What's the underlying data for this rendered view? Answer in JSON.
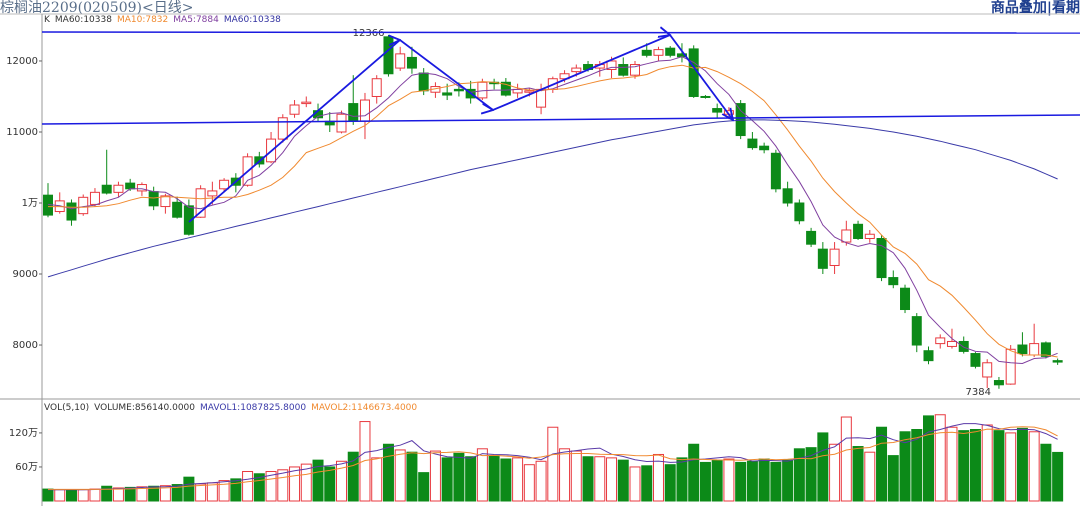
{
  "header": {
    "title": "棕榈油2209(020509)<日线>",
    "right_text": "商品叠加|看期"
  },
  "chart_data": [
    {
      "type": "candlestick",
      "legend": [
        {
          "text": "K",
          "color": "#333333"
        },
        {
          "text": "MA60:10338",
          "color": "#333333"
        },
        {
          "text": "MA10:7832",
          "color": "#f08a30"
        },
        {
          "text": "MA5:7884",
          "color": "#8040a0"
        },
        {
          "text": "MA60:10338",
          "color": "#3030a0"
        }
      ],
      "open": [
        10110,
        9880,
        10000,
        9850,
        9980,
        10250,
        10150,
        10280,
        10170,
        10160,
        9950,
        10010,
        9960,
        9800,
        10100,
        10200,
        10350,
        10250,
        10650,
        10580,
        10900,
        11250,
        11400,
        11300,
        11150,
        11000,
        11400,
        11150,
        11500,
        12340,
        11900,
        12050,
        11830,
        11560,
        11550,
        11600,
        11600,
        11480,
        11700,
        11700,
        11550,
        11560,
        11350,
        11600,
        11750,
        11850,
        11950,
        11900,
        11880,
        11950,
        11800,
        12150,
        12080,
        12180,
        12100,
        12170,
        11500,
        11330,
        11250,
        11400,
        10900,
        10800,
        10700,
        10200,
        10000,
        9600,
        9350,
        9120,
        9450,
        9700,
        9500,
        9500,
        8950,
        8800,
        8400,
        7920,
        8020,
        7980,
        8050,
        7880,
        7550,
        7500,
        7450,
        8000,
        7860,
        8030,
        7780
      ],
      "high": [
        10280,
        10150,
        10050,
        10120,
        10210,
        10750,
        10300,
        10340,
        10290,
        10230,
        10130,
        10090,
        10050,
        10250,
        10300,
        10350,
        10420,
        10700,
        10720,
        11000,
        11250,
        11450,
        11500,
        11400,
        11280,
        11300,
        11800,
        11550,
        11800,
        12366,
        12200,
        12200,
        11900,
        11700,
        11680,
        11700,
        11720,
        11750,
        11750,
        11760,
        11680,
        11620,
        11680,
        11780,
        11870,
        11950,
        12000,
        12000,
        12060,
        12050,
        12000,
        12250,
        12200,
        12210,
        12250,
        12220,
        11520,
        11400,
        11350,
        11450,
        11000,
        10850,
        10750,
        10300,
        10050,
        9650,
        9450,
        9450,
        9750,
        9750,
        9620,
        9550,
        9050,
        8850,
        8450,
        7980,
        8150,
        8230,
        8120,
        7900,
        7800,
        7550,
        8000,
        8180,
        8300,
        8050,
        7810
      ],
      "low": [
        9800,
        9850,
        9680,
        9820,
        9950,
        10120,
        10080,
        10170,
        10100,
        9900,
        9850,
        9780,
        9540,
        9790,
        9980,
        10150,
        10150,
        10230,
        10500,
        10560,
        10850,
        11200,
        11350,
        11150,
        11000,
        10980,
        11100,
        10900,
        11400,
        11780,
        11860,
        11820,
        11520,
        11480,
        11450,
        11500,
        11400,
        11450,
        11600,
        11500,
        11480,
        11500,
        11250,
        11550,
        11700,
        11780,
        11850,
        11780,
        11760,
        11780,
        11750,
        12050,
        12000,
        12050,
        11980,
        11480,
        11470,
        11200,
        11180,
        10900,
        10750,
        10700,
        10150,
        9950,
        9700,
        9380,
        9000,
        9000,
        9400,
        9480,
        9440,
        8900,
        8800,
        8450,
        7900,
        7730,
        7950,
        7950,
        7880,
        7670,
        7394,
        7384,
        7440,
        7840,
        7830,
        7810,
        7720
      ],
      "close": [
        9830,
        10030,
        9760,
        10080,
        10150,
        10140,
        10250,
        10200,
        10260,
        9960,
        10100,
        9800,
        9560,
        10200,
        10170,
        10320,
        10250,
        10650,
        10550,
        10900,
        11200,
        11380,
        11420,
        11200,
        11100,
        11250,
        11150,
        11450,
        11750,
        11820,
        12100,
        11900,
        11580,
        11640,
        11520,
        11580,
        11480,
        11700,
        11680,
        11520,
        11600,
        11580,
        11600,
        11750,
        11820,
        11900,
        11880,
        11950,
        12000,
        11800,
        11950,
        12080,
        12160,
        12080,
        12060,
        11500,
        11490,
        11280,
        11300,
        10950,
        10780,
        10750,
        10200,
        10000,
        9750,
        9420,
        9080,
        9350,
        9620,
        9500,
        9560,
        8950,
        8850,
        8500,
        8000,
        7780,
        8100,
        8050,
        7910,
        7700,
        7750,
        7440,
        7940,
        7880,
        8020,
        7840,
        7760
      ],
      "up_color": "#e8393f",
      "down_color": "#0c8a18",
      "series": [
        {
          "color": "#8040a0",
          "values": [
            9980,
            9960,
            9920,
            9950,
            9970,
            10030,
            10080,
            10200,
            10200,
            10160,
            10150,
            10060,
            9940,
            9920,
            9970,
            10010,
            10100,
            10320,
            10390,
            10530,
            10710,
            10940,
            11090,
            11220,
            11260,
            11270,
            11220,
            11230,
            11340,
            11480,
            11650,
            11800,
            11830,
            11810,
            11750,
            11640,
            11560,
            11580,
            11590,
            11590,
            11600,
            11620,
            11580,
            11610,
            11670,
            11730,
            11790,
            11860,
            11910,
            11910,
            11920,
            11960,
            12000,
            12010,
            12060,
            11980,
            11860,
            11680,
            11530,
            11300,
            11160,
            11010,
            10800,
            10540,
            10300,
            10020,
            9690,
            9520,
            9440,
            9390,
            9430,
            9400,
            9300,
            9080,
            8770,
            8420,
            8250,
            8090,
            7970,
            7910,
            7900,
            7770,
            7750,
            7740,
            7810,
            7820,
            7884
          ]
        },
        {
          "color": "#f08a30",
          "values": [
            9950,
            9950,
            9940,
            9940,
            9950,
            9960,
            9990,
            10040,
            10080,
            10070,
            10090,
            10080,
            10070,
            10060,
            10070,
            10080,
            10080,
            10120,
            10180,
            10250,
            10360,
            10520,
            10710,
            10770,
            10830,
            10920,
            11010,
            11090,
            11220,
            11370,
            11460,
            11560,
            11580,
            11610,
            11640,
            11680,
            11690,
            11710,
            11700,
            11670,
            11620,
            11590,
            11590,
            11600,
            11610,
            11640,
            11680,
            11720,
            11750,
            11760,
            11780,
            11810,
            11880,
            11920,
            11940,
            11900,
            11910,
            11850,
            11770,
            11680,
            11570,
            11440,
            11240,
            11030,
            10800,
            10590,
            10350,
            10160,
            10000,
            9850,
            9730,
            9550,
            9380,
            9290,
            9140,
            8920,
            8830,
            8700,
            8530,
            8350,
            8160,
            8010,
            7920,
            7860,
            7860,
            7860,
            7832
          ]
        },
        {
          "color": "#3a3aa8",
          "values": [
            8960,
            9010,
            9060,
            9110,
            9160,
            9210,
            9255,
            9300,
            9345,
            9390,
            9430,
            9470,
            9510,
            9550,
            9590,
            9630,
            9670,
            9710,
            9750,
            9790,
            9830,
            9870,
            9910,
            9950,
            9990,
            10030,
            10070,
            10110,
            10150,
            10190,
            10230,
            10270,
            10310,
            10350,
            10390,
            10430,
            10470,
            10505,
            10540,
            10575,
            10610,
            10645,
            10680,
            10715,
            10750,
            10785,
            10820,
            10855,
            10890,
            10920,
            10950,
            10980,
            11010,
            11040,
            11070,
            11100,
            11120,
            11140,
            11155,
            11165,
            11170,
            11170,
            11165,
            11160,
            11150,
            11140,
            11125,
            11110,
            11090,
            11070,
            11050,
            11025,
            11000,
            10970,
            10940,
            10905,
            10870,
            10830,
            10790,
            10750,
            10700,
            10650,
            10600,
            10540,
            10480,
            10410,
            10338
          ]
        }
      ],
      "ylim": [
        7254,
        12577
      ],
      "yticks": [
        8000,
        9000,
        {
          "value": 10000,
          "label": "1万"
        },
        11000,
        12000
      ],
      "high_label": "12366",
      "low_label": "7384"
    },
    {
      "type": "volume",
      "legend": [
        {
          "text": "VOL(5,10)",
          "color": "#333333"
        },
        {
          "text": "VOLUME:856140.0000",
          "color": "#333333"
        },
        {
          "text": "MAVOL1:1087825.8000",
          "color": "#3a3aa8"
        },
        {
          "text": "MAVOL2:1146673.4000",
          "color": "#f08a30"
        }
      ],
      "values": [
        210000,
        200000,
        190000,
        200000,
        210000,
        260000,
        230000,
        240000,
        250000,
        260000,
        270000,
        290000,
        420000,
        300000,
        320000,
        360000,
        390000,
        520000,
        480000,
        520000,
        550000,
        600000,
        650000,
        720000,
        600000,
        700000,
        860000,
        1400000,
        760000,
        1000000,
        900000,
        860000,
        500000,
        880000,
        760000,
        840000,
        780000,
        920000,
        800000,
        740000,
        760000,
        640000,
        700000,
        1300000,
        920000,
        880000,
        780000,
        780000,
        760000,
        720000,
        600000,
        620000,
        820000,
        640000,
        760000,
        1000000,
        680000,
        720000,
        740000,
        680000,
        700000,
        740000,
        680000,
        720000,
        920000,
        940000,
        1200000,
        1000000,
        1480000,
        960000,
        860000,
        1300000,
        800000,
        1220000,
        1260000,
        1500000,
        1520000,
        1300000,
        1240000,
        1260000,
        1340000,
        1240000,
        1200000,
        1280000,
        1220000,
        1000000,
        856140
      ],
      "series": [
        {
          "color": "#5a3aa8",
          "values": [
            200000,
            200000,
            200000,
            200000,
            202000,
            212000,
            218000,
            226000,
            238000,
            248000,
            250000,
            262000,
            298000,
            308000,
            320000,
            338000,
            358000,
            382000,
            414000,
            454000,
            492000,
            534000,
            564000,
            608000,
            624000,
            654000,
            706000,
            856000,
            888000,
            944000,
            984000,
            1064000,
            884000,
            828000,
            780000,
            768000,
            752000,
            836000,
            820000,
            816000,
            800000,
            772000,
            728000,
            828000,
            864000,
            888000,
            916000,
            932000,
            824000,
            784000,
            728000,
            696000,
            704000,
            680000,
            688000,
            728000,
            740000,
            760000,
            780000,
            764000,
            704000,
            716000,
            712000,
            704000,
            752000,
            800000,
            892000,
            956000,
            1108000,
            1116000,
            1100000,
            1160000,
            1080000,
            1028000,
            1088000,
            1216000,
            1260000,
            1320000,
            1364000,
            1364000,
            1332000,
            1276000,
            1256000,
            1264000,
            1256000,
            1188000,
            1087825.8
          ]
        },
        {
          "color": "#f08a30",
          "values": [
            205000,
            205000,
            205000,
            205000,
            205000,
            207000,
            209000,
            213000,
            220000,
            225000,
            231000,
            240000,
            262000,
            273000,
            284000,
            294000,
            310000,
            338000,
            361000,
            387000,
            415000,
            446000,
            469000,
            511000,
            539000,
            579000,
            626000,
            714000,
            742000,
            790000,
            825000,
            851000,
            836000,
            852000,
            856000,
            868000,
            848000,
            800000,
            804000,
            792000,
            777000,
            755000,
            775000,
            817000,
            833000,
            837000,
            837000,
            823000,
            819000,
            817000,
            801000,
            799000,
            811000,
            745000,
            729000,
            741000,
            731000,
            725000,
            723000,
            719000,
            729000,
            741000,
            727000,
            735000,
            751000,
            745000,
            797000,
            825000,
            899000,
            927000,
            943000,
            1019000,
            1031000,
            1081000,
            1115000,
            1171000,
            1203000,
            1213000,
            1189000,
            1219000,
            1267000,
            1261000,
            1301000,
            1307000,
            1303000,
            1253000,
            1146673.4
          ]
        }
      ],
      "ylim": [
        0,
        1780000
      ],
      "yticks": [
        {
          "value": 600000,
          "label": "60万"
        },
        {
          "value": 1200000,
          "label": "120万"
        }
      ]
    }
  ]
}
